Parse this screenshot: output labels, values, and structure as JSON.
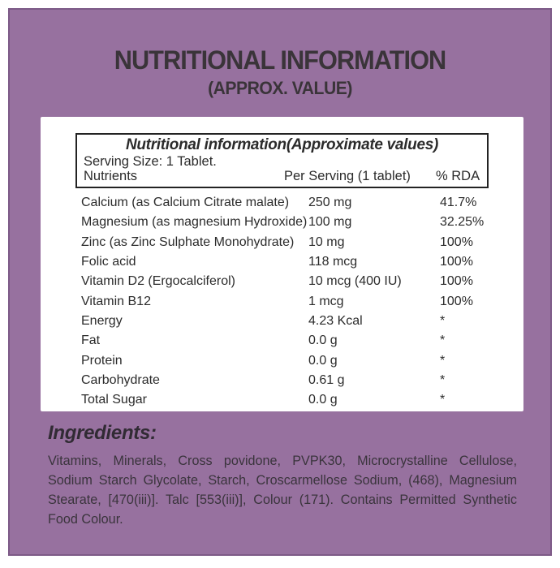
{
  "colors": {
    "panel": "#97719f",
    "panel_border": "#7d5a87",
    "title_text": "#3a3439",
    "card_bg": "#ffffff",
    "box_border": "#232323",
    "table_text": "#2b2b2b",
    "ingredients_heading": "#312b34",
    "ingredients_text": "#3a343c"
  },
  "header": {
    "title": "NUTRITIONAL INFORMATION",
    "subtitle": "(APPROX. VALUE)"
  },
  "table": {
    "title": "Nutritional information(Approximate values)",
    "serving_size": "Serving Size: 1 Tablet.",
    "columns": {
      "nutrients": "Nutrients",
      "per_serving": "Per Serving (1 tablet)",
      "rda": "% RDA"
    },
    "rows": [
      {
        "nutrient": "Calcium (as Calcium Citrate malate)",
        "per_serving": "250 mg",
        "rda": "41.7%"
      },
      {
        "nutrient": "Magnesium (as magnesium Hydroxide)",
        "per_serving": "100 mg",
        "rda": "32.25%"
      },
      {
        "nutrient": "Zinc (as Zinc Sulphate Monohydrate)",
        "per_serving": "10 mg",
        "rda": "100%"
      },
      {
        "nutrient": "Folic acid",
        "per_serving": "118 mcg",
        "rda": "100%"
      },
      {
        "nutrient": "Vitamin D2 (Ergocalciferol)",
        "per_serving": "10 mcg (400 IU)",
        "rda": "100%"
      },
      {
        "nutrient": "Vitamin B12",
        "per_serving": "1 mcg",
        "rda": "100%"
      },
      {
        "nutrient": "Energy",
        "per_serving": "4.23 Kcal",
        "rda": "*"
      },
      {
        "nutrient": "Fat",
        "per_serving": "0.0 g",
        "rda": "*"
      },
      {
        "nutrient": "Protein",
        "per_serving": "0.0 g",
        "rda": "*"
      },
      {
        "nutrient": "Carbohydrate",
        "per_serving": "0.61 g",
        "rda": "*"
      },
      {
        "nutrient": "Total Sugar",
        "per_serving": "0.0 g",
        "rda": "*"
      }
    ]
  },
  "ingredients": {
    "heading": "Ingredients:",
    "text": "Vitamins, Minerals, Cross povidone, PVPK30, Microcrystalline Cellulose, Sodium Starch Glycolate, Starch, Croscarmellose Sodium, (468), Magnesium Stearate, [470(iii)]. Talc [553(iii)], Colour (171). Contains Permitted Synthetic Food Colour."
  }
}
